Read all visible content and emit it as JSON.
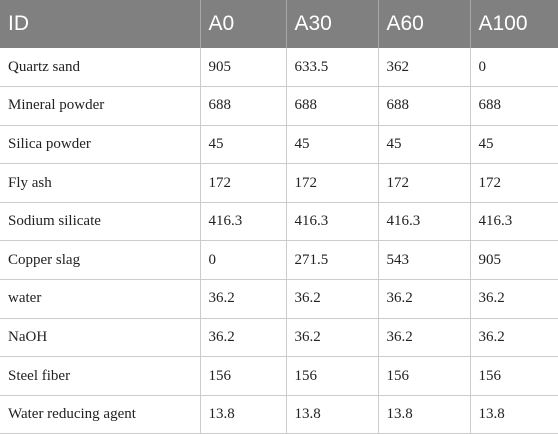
{
  "table": {
    "headers": [
      "ID",
      "A0",
      "A30",
      "A60",
      "A100"
    ],
    "rows": [
      [
        "Quartz sand",
        "905",
        "633.5",
        "362",
        "0"
      ],
      [
        "Mineral powder",
        "688",
        "688",
        "688",
        "688"
      ],
      [
        "Silica powder",
        "45",
        "45",
        "45",
        "45"
      ],
      [
        "Fly ash",
        "172",
        "172",
        "172",
        "172"
      ],
      [
        "Sodium silicate",
        "416.3",
        "416.3",
        "416.3",
        "416.3"
      ],
      [
        "Copper slag",
        "0",
        "271.5",
        "543",
        "905"
      ],
      [
        "water",
        "36.2",
        "36.2",
        "36.2",
        "36.2"
      ],
      [
        "NaOH",
        "36.2",
        "36.2",
        "36.2",
        "36.2"
      ],
      [
        "Steel fiber",
        "156",
        "156",
        "156",
        "156"
      ],
      [
        "Water reducing agent",
        "13.8",
        "13.8",
        "13.8",
        "13.8"
      ]
    ]
  }
}
